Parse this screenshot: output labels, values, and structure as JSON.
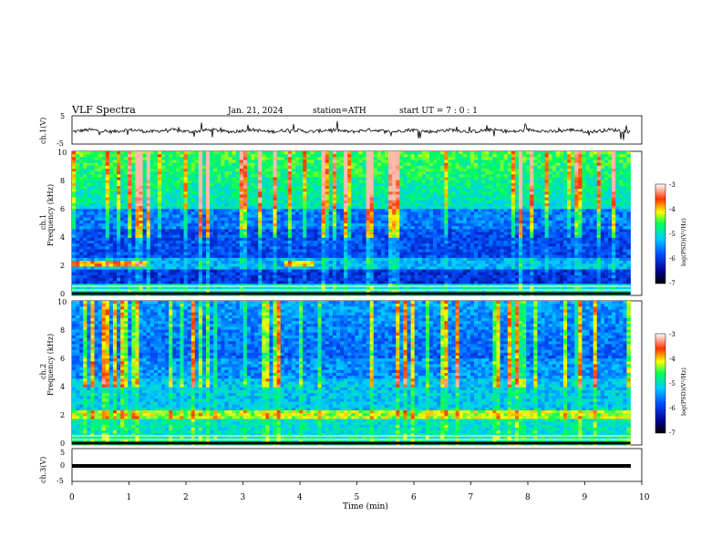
{
  "header": {
    "title": "VLF  Spectra",
    "date": "Jan. 21, 2024",
    "station": "station=ATH",
    "start": "start  UT  =   7 : 0  : 1"
  },
  "chart_data": [
    {
      "type": "line",
      "panel": "ch1-waveform",
      "ylabel": "ch.1(V)",
      "ylim": [
        -5,
        5
      ],
      "y_ticks": [
        "5",
        "-5"
      ],
      "xlim": [
        0,
        10
      ],
      "description_of_values": "noisy waveform near 0 V with occasional spikes up to about ±3 V",
      "baseline": -0.3
    },
    {
      "type": "heatmap",
      "panel": "ch1-spectrogram",
      "channel_label": "ch.1",
      "ylabel": "Frequency  (kHz)",
      "ylim": [
        0,
        10
      ],
      "y_ticks": [
        "0",
        "2",
        "4",
        "6",
        "8",
        "10"
      ],
      "xlim": [
        0,
        9.8
      ],
      "colorbar": {
        "label": "log(PSD)(V²/Hz)",
        "range": [
          -7,
          -3
        ],
        "ticks": [
          "-3",
          "-4",
          "-5",
          "-6",
          "-7"
        ]
      },
      "features": "strong low-level band below 1 kHz, bright line near 2.2 kHz from about 0 to 1.3 min, many vertical sferic streaks above 5 kHz"
    },
    {
      "type": "heatmap",
      "panel": "ch2-spectrogram",
      "channel_label": "ch.2",
      "ylabel": "Frequency  (kHz)",
      "ylim": [
        0,
        10
      ],
      "y_ticks": [
        "0",
        "2",
        "4",
        "6",
        "8",
        "10"
      ],
      "xlim": [
        0,
        9.8
      ],
      "colorbar": {
        "label": "log(PSD)(V²/Hz)",
        "range": [
          -7,
          -3
        ],
        "ticks": [
          "-3",
          "-4",
          "-5",
          "-6",
          "-7"
        ]
      },
      "features": "bright line near 2 kHz across most of the record, horizontal bands between 2 and 4.5 kHz, vertical streaks above 5 kHz"
    },
    {
      "type": "line",
      "panel": "ch3-waveform",
      "ylabel": "ch.3(V)",
      "ylim": [
        -5,
        5
      ],
      "y_ticks": [
        "5",
        "0",
        "-5"
      ],
      "xlim": [
        0,
        9.8
      ],
      "baseline": -0.3
    }
  ],
  "x_axis": {
    "label": "Time  (min)",
    "ticks": [
      "0",
      "1",
      "2",
      "3",
      "4",
      "5",
      "6",
      "7",
      "8",
      "9",
      "10"
    ]
  }
}
